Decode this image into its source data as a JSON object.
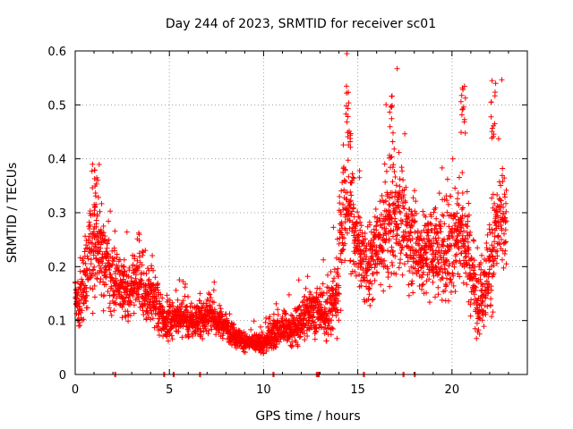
{
  "chart_data": {
    "type": "scatter",
    "title": "Day 244 of 2023, SRMTID for receiver sc01",
    "xlabel": "GPS time / hours",
    "ylabel": "SRMTID / TECUs",
    "xlim": [
      0,
      24
    ],
    "ylim": [
      0,
      0.6
    ],
    "xticks": [
      0,
      5,
      10,
      15,
      20
    ],
    "yticks": [
      0,
      0.1,
      0.2,
      0.3,
      0.4,
      0.5,
      0.6
    ],
    "xtick_labels": [
      "0",
      "5",
      "10",
      "15",
      "20"
    ],
    "ytick_labels": [
      "0",
      "0.1",
      "0.2",
      "0.3",
      "0.4",
      "0.5",
      "0.6"
    ],
    "grid": true,
    "marker": "+",
    "color": "#ff0000",
    "series": [
      {
        "name": "SRMTID",
        "profile_x_hours": [
          0.0,
          0.2,
          0.4,
          0.7,
          1.0,
          1.2,
          1.5,
          1.8,
          2.0,
          2.3,
          2.6,
          2.9,
          3.2,
          3.5,
          3.8,
          4.1,
          4.4,
          4.7,
          5.0,
          5.5,
          6.0,
          6.5,
          7.0,
          7.5,
          8.0,
          8.5,
          9.0,
          9.5,
          10.0,
          10.3,
          10.6,
          11.0,
          11.5,
          12.0,
          12.5,
          13.0,
          13.5,
          13.9,
          14.2,
          14.5,
          14.8,
          15.2,
          15.6,
          16.0,
          16.5,
          16.8,
          17.2,
          17.6,
          18.0,
          18.5,
          19.0,
          19.5,
          20.0,
          20.5,
          20.9,
          21.3,
          21.7,
          22.0,
          22.3,
          22.6,
          22.9
        ],
        "profile_median": [
          0.15,
          0.12,
          0.16,
          0.21,
          0.25,
          0.23,
          0.22,
          0.2,
          0.18,
          0.17,
          0.16,
          0.15,
          0.17,
          0.16,
          0.14,
          0.15,
          0.12,
          0.1,
          0.1,
          0.11,
          0.1,
          0.1,
          0.11,
          0.1,
          0.09,
          0.07,
          0.06,
          0.06,
          0.055,
          0.07,
          0.08,
          0.09,
          0.08,
          0.1,
          0.12,
          0.11,
          0.12,
          0.15,
          0.3,
          0.34,
          0.27,
          0.22,
          0.2,
          0.24,
          0.26,
          0.28,
          0.3,
          0.26,
          0.24,
          0.22,
          0.24,
          0.22,
          0.25,
          0.27,
          0.22,
          0.14,
          0.16,
          0.2,
          0.26,
          0.3,
          0.26
        ],
        "profile_spread": [
          0.04,
          0.04,
          0.06,
          0.08,
          0.08,
          0.07,
          0.07,
          0.06,
          0.06,
          0.05,
          0.05,
          0.05,
          0.05,
          0.05,
          0.05,
          0.05,
          0.04,
          0.03,
          0.03,
          0.03,
          0.03,
          0.03,
          0.03,
          0.03,
          0.02,
          0.02,
          0.015,
          0.015,
          0.015,
          0.025,
          0.03,
          0.03,
          0.03,
          0.04,
          0.04,
          0.04,
          0.05,
          0.08,
          0.1,
          0.12,
          0.08,
          0.07,
          0.07,
          0.08,
          0.09,
          0.1,
          0.09,
          0.08,
          0.08,
          0.08,
          0.08,
          0.08,
          0.1,
          0.1,
          0.09,
          0.06,
          0.07,
          0.09,
          0.1,
          0.1,
          0.08
        ],
        "peaks": [
          [
            1.1,
            0.39
          ],
          [
            14.5,
            0.53
          ],
          [
            16.8,
            0.52
          ],
          [
            20.6,
            0.54
          ],
          [
            22.2,
            0.55
          ]
        ],
        "zero_markers": [
          2.1,
          4.7,
          5.2,
          6.6,
          10.5,
          12.8,
          12.9,
          15.3,
          17.4,
          18.0
        ]
      }
    ]
  }
}
